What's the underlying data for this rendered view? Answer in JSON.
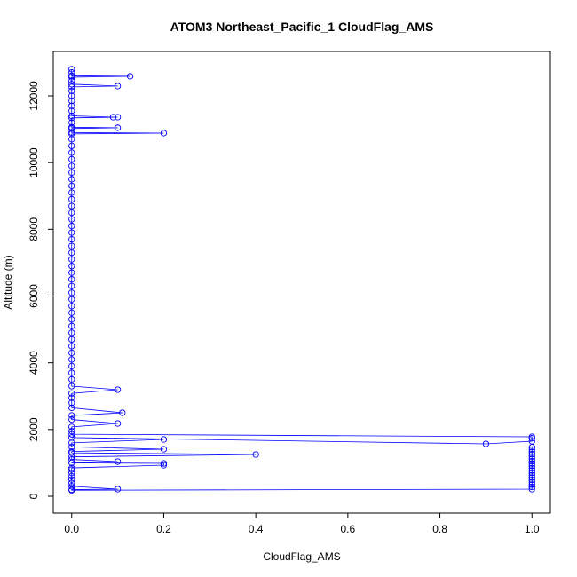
{
  "chart_data": {
    "type": "line",
    "title": "ATOM3 Northeast_Pacific_1 CloudFlag_AMS",
    "x_label": "CloudFlag_AMS",
    "y_label": "Altitude (m)",
    "color": "#0000ff",
    "x": [
      0,
      0,
      0,
      0.127,
      0,
      0,
      0,
      0.1,
      0,
      0,
      0,
      0,
      0,
      0,
      0,
      0.09,
      0.1,
      0,
      0,
      0,
      0.1,
      0,
      0,
      0.2,
      0,
      0,
      0,
      0,
      0,
      0,
      0,
      0,
      0,
      0,
      0,
      0,
      0,
      0,
      0,
      0,
      0,
      0,
      0,
      0,
      0,
      0,
      0,
      0,
      0,
      0,
      0,
      0,
      0,
      0,
      0,
      0,
      0,
      0,
      0,
      0,
      0,
      0,
      0,
      0.1,
      0,
      0,
      0,
      0,
      0.11,
      0,
      0,
      0.1,
      0,
      0,
      0,
      1,
      1,
      1,
      0.9,
      0,
      0.2,
      0,
      0,
      0.2,
      0,
      0,
      0.4,
      0,
      0,
      0.1,
      0,
      0.2,
      0.2,
      0,
      0,
      0,
      0,
      0,
      0,
      0,
      0.1,
      0,
      0,
      1,
      1,
      1,
      1,
      1,
      1,
      1,
      1,
      1,
      1,
      1,
      1,
      1,
      1,
      1,
      1,
      1,
      1,
      1
    ],
    "values": [
      12800,
      12700,
      12600,
      12587,
      12560,
      12450,
      12350,
      12294,
      12270,
      12150,
      12000,
      11850,
      11700,
      11550,
      11400,
      11362,
      11362,
      11340,
      11200,
      11060,
      11043,
      11020,
      10900,
      10883,
      10860,
      10700,
      10500,
      10300,
      10100,
      9900,
      9700,
      9500,
      9300,
      9100,
      8900,
      8700,
      8500,
      8300,
      8100,
      7900,
      7700,
      7500,
      7300,
      7100,
      6900,
      6700,
      6500,
      6300,
      6100,
      5900,
      5700,
      5500,
      5300,
      5100,
      4900,
      4700,
      4500,
      4300,
      4100,
      3900,
      3700,
      3500,
      3300,
      3193,
      3080,
      2950,
      2800,
      2650,
      2501,
      2420,
      2300,
      2182,
      2080,
      1950,
      1860,
      1783,
      1740,
      1650,
      1570,
      1760,
      1703,
      1600,
      1480,
      1410,
      1340,
      1300,
      1251,
      1180,
      1100,
      1038,
      1000,
      985,
      931,
      850,
      800,
      700,
      600,
      500,
      400,
      300,
      213,
      200,
      180,
      213,
      280,
      350,
      420,
      490,
      560,
      630,
      700,
      770,
      840,
      910,
      980,
      1050,
      1120,
      1190,
      1260,
      1330,
      1400,
      1470
    ],
    "xlim": [
      -0.04,
      1.04
    ],
    "ylim": [
      -505,
      13330
    ],
    "xticks": [
      {
        "value": 0,
        "label": "0.0"
      },
      0.2,
      0.4,
      0.6,
      0.8,
      {
        "value": 1,
        "label": "1.0"
      }
    ],
    "yticks": [
      0,
      2000,
      4000,
      6000,
      8000,
      10000,
      12000
    ]
  }
}
